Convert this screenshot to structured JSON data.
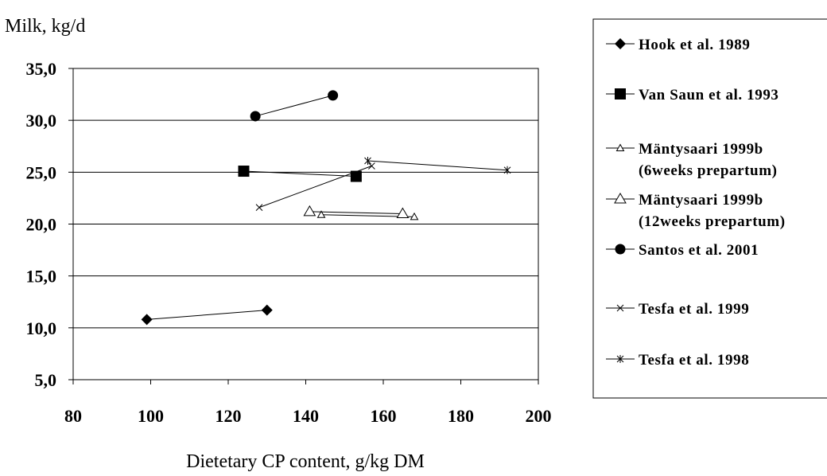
{
  "chart_data": {
    "type": "line",
    "ylabel": "Milk, kg/d",
    "xlabel": "Dietetary  CP content, g/kg DM",
    "xlim": [
      80,
      200
    ],
    "ylim": [
      5,
      35
    ],
    "x_ticks": [
      "80",
      "100",
      "120",
      "140",
      "160",
      "180",
      "200"
    ],
    "y_ticks": [
      "5,0",
      "10,0",
      "15,0",
      "20,0",
      "25,0",
      "30,0",
      "35,0"
    ],
    "grid": "horizontal",
    "legend_position": "right",
    "series": [
      {
        "name": "Hook et al. 1989",
        "marker": "diamond",
        "points": [
          [
            99,
            10.8
          ],
          [
            130,
            11.7
          ]
        ]
      },
      {
        "name": "Van Saun et al. 1993",
        "marker": "square",
        "points": [
          [
            124,
            25.1
          ],
          [
            153,
            24.6
          ]
        ]
      },
      {
        "name": "Mäntysaari  1999b (6weeks prepartum)",
        "name_lines": [
          "Mäntysaari  1999b",
          "(6weeks prepartum)"
        ],
        "marker": "triangle-small",
        "points": [
          [
            144,
            20.9
          ],
          [
            168,
            20.7
          ]
        ]
      },
      {
        "name": "Mäntysaari 1999b (12weeks prepartum)",
        "name_lines": [
          "Mäntysaari 1999b",
          "(12weeks prepartum)"
        ],
        "marker": "triangle",
        "points": [
          [
            141,
            21.2
          ],
          [
            165,
            21.0
          ]
        ]
      },
      {
        "name": "Santos et al. 2001",
        "marker": "circle",
        "points": [
          [
            127,
            30.4
          ],
          [
            147,
            32.4
          ]
        ]
      },
      {
        "name": "Tesfa et al. 1999",
        "marker": "x",
        "points": [
          [
            128,
            21.6
          ],
          [
            157,
            25.6
          ]
        ]
      },
      {
        "name": "Tesfa et al. 1998",
        "marker": "star",
        "points": [
          [
            156,
            26.1
          ],
          [
            192,
            25.2
          ]
        ]
      }
    ]
  }
}
